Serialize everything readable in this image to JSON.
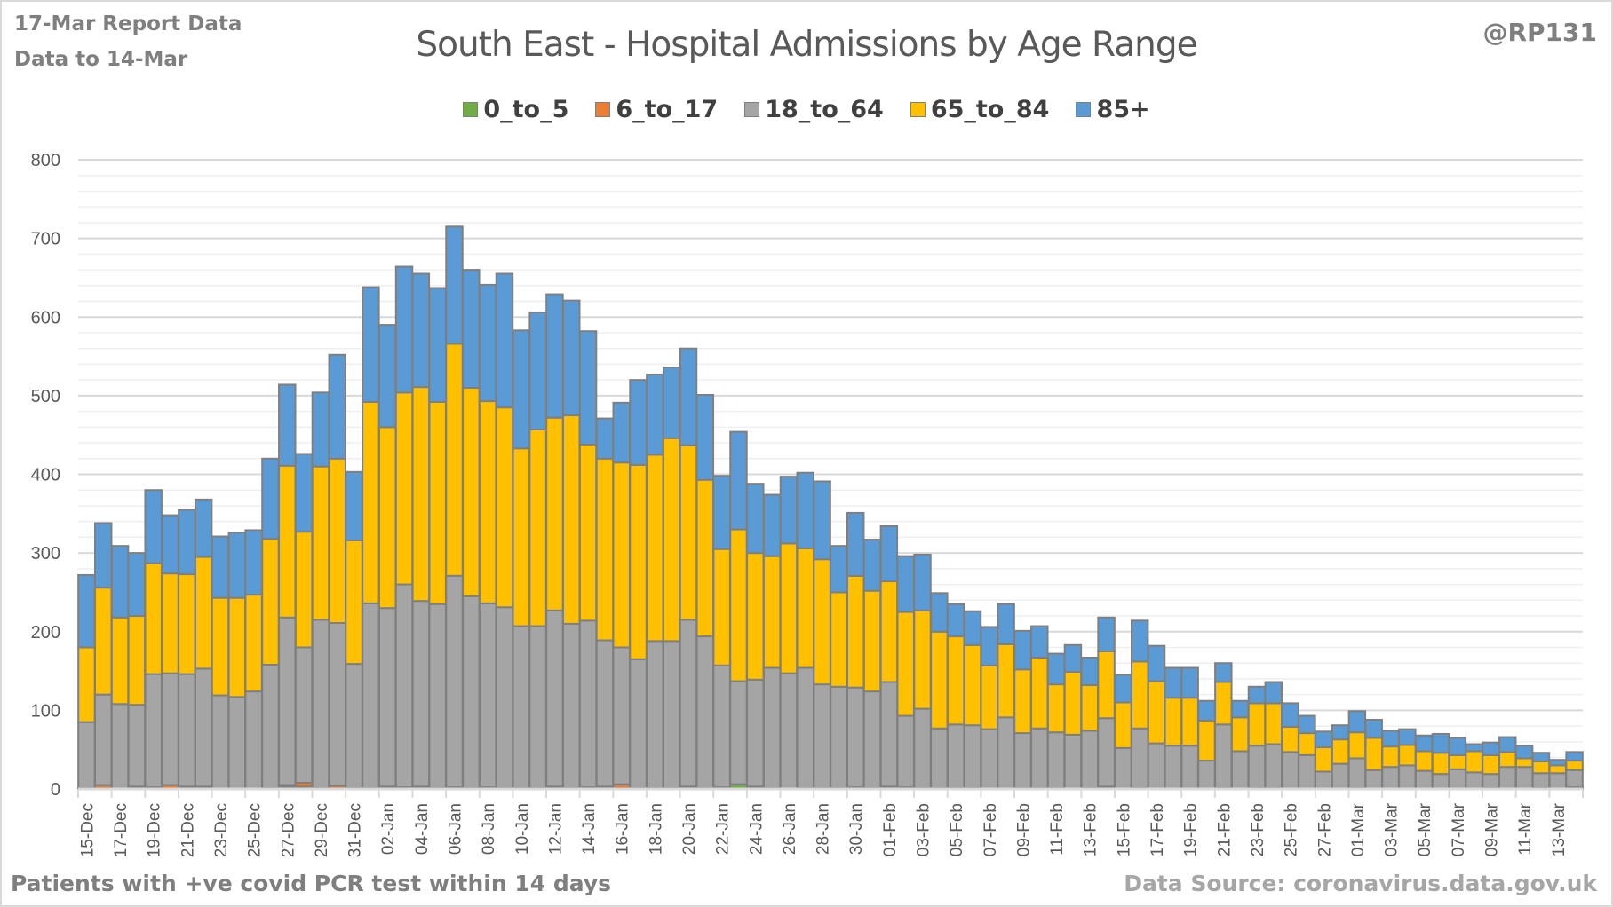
{
  "header": {
    "report_line": "17-Mar Report Data",
    "data_to_line": "Data to 14-Mar",
    "handle": "@RP131"
  },
  "footer": {
    "note": "Patients with  +ve covid PCR test within 14 days",
    "source": "Data Source: coronavirus.data.gov.uk"
  },
  "chart_data": {
    "type": "bar",
    "stacked": true,
    "title": "South East - Hospital Admissions by Age Range",
    "xlabel": "",
    "ylabel": "",
    "ylim": [
      0,
      800
    ],
    "yticks": [
      0,
      100,
      200,
      300,
      400,
      500,
      600,
      700,
      800
    ],
    "grid": true,
    "legend_position": "top",
    "x_tick_labels": [
      "15-Dec",
      "17-Dec",
      "19-Dec",
      "21-Dec",
      "23-Dec",
      "25-Dec",
      "27-Dec",
      "29-Dec",
      "31-Dec",
      "02-Jan",
      "04-Jan",
      "06-Jan",
      "08-Jan",
      "10-Jan",
      "12-Jan",
      "14-Jan",
      "16-Jan",
      "18-Jan",
      "20-Jan",
      "22-Jan",
      "24-Jan",
      "26-Jan",
      "28-Jan",
      "30-Jan",
      "01-Feb",
      "03-Feb",
      "05-Feb",
      "07-Feb",
      "09-Feb",
      "11-Feb",
      "13-Feb",
      "15-Feb",
      "17-Feb",
      "19-Feb",
      "21-Feb",
      "23-Feb",
      "25-Feb",
      "27-Feb",
      "01-Mar",
      "03-Mar",
      "05-Mar",
      "07-Mar",
      "09-Mar",
      "11-Mar",
      "13-Mar"
    ],
    "categories": [
      "15-Dec",
      "16-Dec",
      "17-Dec",
      "18-Dec",
      "19-Dec",
      "20-Dec",
      "21-Dec",
      "22-Dec",
      "23-Dec",
      "24-Dec",
      "25-Dec",
      "26-Dec",
      "27-Dec",
      "28-Dec",
      "29-Dec",
      "30-Dec",
      "31-Dec",
      "01-Jan",
      "02-Jan",
      "03-Jan",
      "04-Jan",
      "05-Jan",
      "06-Jan",
      "07-Jan",
      "08-Jan",
      "09-Jan",
      "10-Jan",
      "11-Jan",
      "12-Jan",
      "13-Jan",
      "14-Jan",
      "15-Jan",
      "16-Jan",
      "17-Jan",
      "18-Jan",
      "19-Jan",
      "20-Jan",
      "21-Jan",
      "22-Jan",
      "23-Jan",
      "24-Jan",
      "25-Jan",
      "26-Jan",
      "27-Jan",
      "28-Jan",
      "29-Jan",
      "30-Jan",
      "31-Jan",
      "01-Feb",
      "02-Feb",
      "03-Feb",
      "04-Feb",
      "05-Feb",
      "06-Feb",
      "07-Feb",
      "08-Feb",
      "09-Feb",
      "10-Feb",
      "11-Feb",
      "12-Feb",
      "13-Feb",
      "14-Feb",
      "15-Feb",
      "16-Feb",
      "17-Feb",
      "18-Feb",
      "19-Feb",
      "20-Feb",
      "21-Feb",
      "22-Feb",
      "23-Feb",
      "24-Feb",
      "25-Feb",
      "26-Feb",
      "27-Feb",
      "28-Feb",
      "01-Mar",
      "02-Mar",
      "03-Mar",
      "04-Mar",
      "05-Mar",
      "06-Mar",
      "07-Mar",
      "08-Mar",
      "09-Mar",
      "10-Mar",
      "11-Mar",
      "12-Mar",
      "13-Mar",
      "14-Mar"
    ],
    "series": [
      {
        "name": "0_to_5",
        "color": "#70ad47",
        "values": [
          1,
          1,
          0,
          3,
          1,
          0,
          1,
          3,
          0,
          0,
          0,
          1,
          3,
          3,
          1,
          0,
          1,
          1,
          1,
          0,
          1,
          1,
          2,
          1,
          2,
          1,
          1,
          1,
          3,
          1,
          1,
          1,
          1,
          1,
          1,
          1,
          2,
          1,
          2,
          6,
          3,
          1,
          0,
          1,
          1,
          1,
          2,
          1,
          3,
          2,
          1,
          1,
          1,
          1,
          0,
          0,
          1,
          0,
          1,
          0,
          1,
          0,
          0,
          1,
          0,
          0,
          0,
          0,
          1,
          0,
          1,
          1,
          0,
          0,
          0,
          0,
          1,
          0,
          0,
          0,
          0,
          0,
          0,
          0,
          1,
          0,
          0,
          1,
          0,
          0
        ]
      },
      {
        "name": "6_to_17",
        "color": "#ed7d31",
        "values": [
          0,
          4,
          0,
          0,
          1,
          5,
          2,
          0,
          0,
          0,
          0,
          0,
          2,
          5,
          0,
          4,
          0,
          0,
          2,
          2,
          2,
          0,
          0,
          0,
          0,
          0,
          0,
          0,
          0,
          0,
          1,
          2,
          5,
          0,
          0,
          0,
          1,
          0,
          0,
          0,
          0,
          0,
          0,
          0,
          0,
          0,
          0,
          0,
          0,
          0,
          0,
          0,
          0,
          0,
          0,
          0,
          0,
          1,
          0,
          0,
          0,
          3,
          0,
          0,
          0,
          0,
          0,
          0,
          0,
          0,
          0,
          0,
          0,
          0,
          0,
          0,
          0,
          0,
          0,
          0,
          0,
          0,
          0,
          0,
          0,
          0,
          0,
          0,
          0,
          2
        ]
      },
      {
        "name": "18_to_64",
        "color": "#a5a5a5",
        "values": [
          84,
          115,
          108,
          104,
          144,
          142,
          143,
          150,
          119,
          117,
          124,
          157,
          213,
          172,
          214,
          207,
          158,
          235,
          227,
          258,
          236,
          234,
          269,
          244,
          234,
          230,
          206,
          206,
          224,
          209,
          212,
          186,
          174,
          164,
          187,
          187,
          212,
          193,
          155,
          131,
          136,
          153,
          147,
          153,
          132,
          129,
          127,
          123,
          133,
          91,
          101,
          76,
          81,
          80,
          76,
          91,
          70,
          76,
          71,
          69,
          73,
          87,
          52,
          76,
          58,
          55,
          55,
          36,
          81,
          48,
          54,
          56,
          47,
          43,
          22,
          32,
          38,
          24,
          28,
          30,
          23,
          19,
          25,
          21,
          18,
          28,
          28,
          19,
          20,
          22
        ]
      },
      {
        "name": "65_to_84",
        "color": "#ffc000",
        "values": [
          95,
          136,
          110,
          113,
          141,
          127,
          127,
          142,
          124,
          126,
          123,
          160,
          193,
          147,
          195,
          209,
          157,
          256,
          230,
          244,
          272,
          257,
          295,
          265,
          257,
          254,
          226,
          250,
          245,
          265,
          224,
          231,
          235,
          247,
          237,
          258,
          222,
          199,
          148,
          193,
          161,
          142,
          165,
          152,
          159,
          120,
          142,
          128,
          128,
          132,
          125,
          123,
          112,
          102,
          81,
          93,
          81,
          90,
          61,
          80,
          58,
          85,
          58,
          85,
          79,
          61,
          61,
          51,
          54,
          43,
          54,
          52,
          32,
          28,
          31,
          31,
          33,
          41,
          26,
          26,
          25,
          27,
          18,
          27,
          24,
          19,
          11,
          15,
          10,
          12
        ]
      },
      {
        "name": "85+",
        "color": "#5b9bd5",
        "values": [
          92,
          82,
          91,
          80,
          93,
          74,
          82,
          73,
          78,
          83,
          82,
          102,
          103,
          99,
          94,
          132,
          87,
          146,
          130,
          160,
          144,
          145,
          149,
          150,
          148,
          170,
          150,
          149,
          157,
          146,
          144,
          51,
          76,
          108,
          102,
          90,
          123,
          108,
          93,
          124,
          88,
          78,
          85,
          96,
          99,
          59,
          80,
          65,
          70,
          71,
          71,
          49,
          41,
          43,
          49,
          51,
          49,
          40,
          39,
          34,
          35,
          43,
          35,
          52,
          45,
          38,
          38,
          25,
          24,
          21,
          21,
          27,
          30,
          22,
          20,
          18,
          27,
          23,
          20,
          20,
          20,
          24,
          22,
          9,
          16,
          19,
          16,
          11,
          7,
          11
        ]
      }
    ]
  }
}
